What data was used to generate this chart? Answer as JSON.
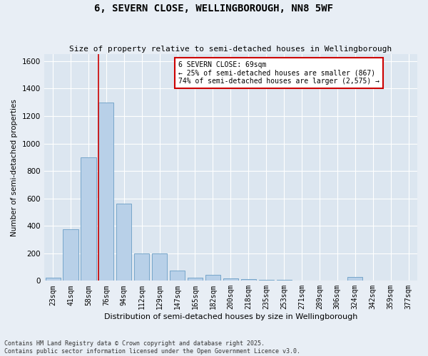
{
  "title": "6, SEVERN CLOSE, WELLINGBOROUGH, NN8 5WF",
  "subtitle": "Size of property relative to semi-detached houses in Wellingborough",
  "xlabel": "Distribution of semi-detached houses by size in Wellingborough",
  "ylabel": "Number of semi-detached properties",
  "categories": [
    "23sqm",
    "41sqm",
    "58sqm",
    "76sqm",
    "94sqm",
    "112sqm",
    "129sqm",
    "147sqm",
    "165sqm",
    "182sqm",
    "200sqm",
    "218sqm",
    "235sqm",
    "253sqm",
    "271sqm",
    "289sqm",
    "306sqm",
    "324sqm",
    "342sqm",
    "359sqm",
    "377sqm"
  ],
  "values": [
    20,
    375,
    900,
    1300,
    560,
    200,
    200,
    75,
    20,
    45,
    15,
    10,
    5,
    5,
    3,
    3,
    3,
    28,
    3,
    3,
    3
  ],
  "bar_color": "#b8d0e8",
  "bar_edge_color": "#6a9ec5",
  "property_label": "6 SEVERN CLOSE: 69sqm",
  "pct_smaller": 25,
  "pct_larger": 74,
  "n_smaller": 867,
  "n_larger": 2575,
  "annotation_box_color": "#cc0000",
  "background_color": "#e8eef5",
  "plot_background": "#dce6f0",
  "ylim": [
    0,
    1650
  ],
  "yticks": [
    0,
    200,
    400,
    600,
    800,
    1000,
    1200,
    1400,
    1600
  ],
  "vline_pos": 2.55,
  "footer": "Contains HM Land Registry data © Crown copyright and database right 2025.\nContains public sector information licensed under the Open Government Licence v3.0."
}
